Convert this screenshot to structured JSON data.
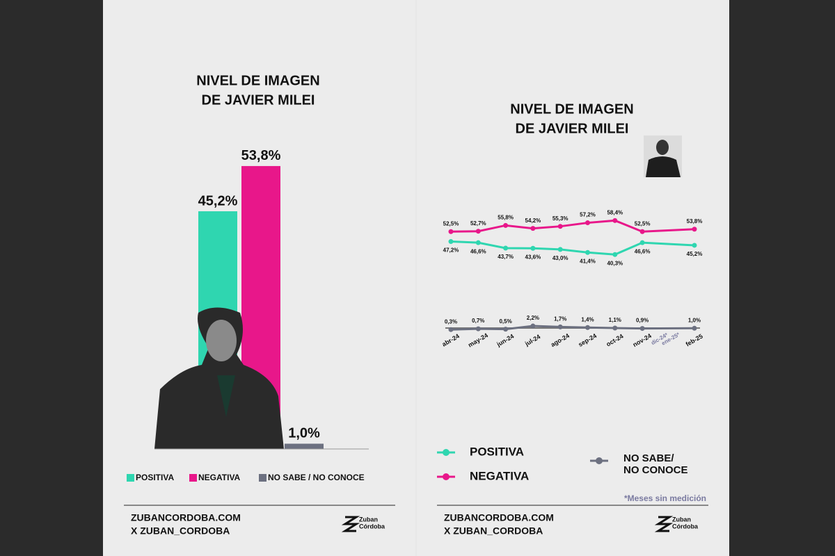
{
  "chart_data": [
    {
      "type": "bar",
      "title": [
        "NIVEL DE IMAGEN",
        "DE JAVIER MILEI"
      ],
      "categories": [
        "POSITIVA",
        "NEGATIVA",
        "NO SABE / NO CONOCE"
      ],
      "values": [
        45.2,
        53.8,
        1.0
      ],
      "value_labels": [
        "45,2%",
        "53,8%",
        "1,0%"
      ],
      "colors": [
        "#2fd6b0",
        "#e8178a",
        "#6c7080"
      ],
      "ylim": [
        0,
        60
      ]
    },
    {
      "type": "line",
      "title": [
        "NIVEL DE IMAGEN",
        "DE JAVIER MILEI"
      ],
      "categories": [
        "abr-24",
        "may-24",
        "jun-24",
        "jul-24",
        "ago-24",
        "sep-24",
        "oct-24",
        "nov-24",
        "feb-25"
      ],
      "gap_labels": [
        "dic-24*",
        "ene-25*"
      ],
      "ylim": [
        0,
        60
      ],
      "series": [
        {
          "name": "POSITIVA",
          "color": "#2fd6b0",
          "values": [
            47.2,
            46.6,
            43.7,
            43.6,
            43.0,
            41.4,
            40.3,
            46.6,
            45.2
          ],
          "value_labels": [
            "47,2%",
            "46,6%",
            "43,7%",
            "43,6%",
            "43,0%",
            "41,4%",
            "40,3%",
            "46,6%",
            "45,2%"
          ]
        },
        {
          "name": "NEGATIVA",
          "color": "#e8178a",
          "values": [
            52.5,
            52.7,
            55.8,
            54.2,
            55.3,
            57.2,
            58.4,
            52.5,
            53.8
          ],
          "value_labels": [
            "52,5%",
            "52,7%",
            "55,8%",
            "54,2%",
            "55,3%",
            "57,2%",
            "58,4%",
            "52,5%",
            "53,8%"
          ]
        },
        {
          "name": "NO SABE/ NO CONOCE",
          "color": "#6c7080",
          "values": [
            0.3,
            0.7,
            0.5,
            2.2,
            1.7,
            1.4,
            1.1,
            0.9,
            1.0
          ],
          "value_labels": [
            "0,3%",
            "0,7%",
            "0,5%",
            "2,2%",
            "1,7%",
            "1,4%",
            "1,1%",
            "0,9%",
            "1,0%"
          ]
        }
      ],
      "note": "*Meses sin medición"
    }
  ],
  "footer": {
    "site": "ZUBANCORDOBA.COM",
    "handle": "X ZUBAN_CORDOBA",
    "logo": [
      "Zuban",
      "Córdoba"
    ]
  }
}
